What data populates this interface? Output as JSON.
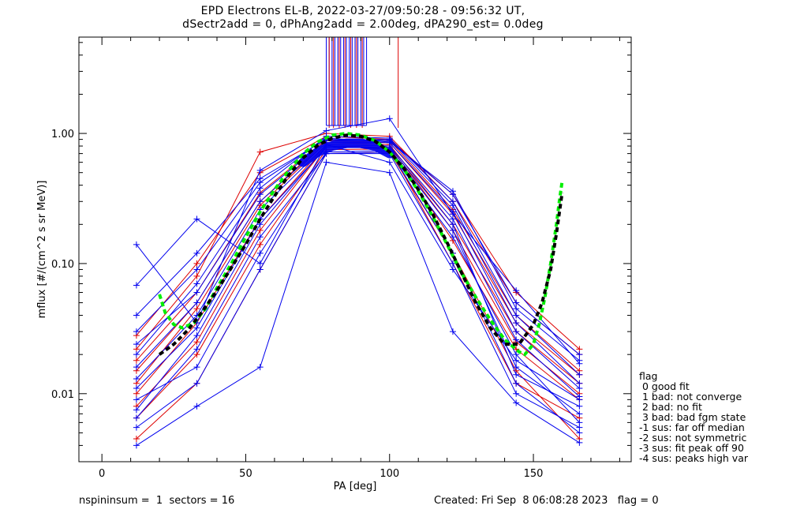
{
  "title_line1": "EPD Electrons EL-B, 2022-03-27/09:50:28 - 09:56:32 UT,",
  "title_line2": "dSectr2add = 0, dPhAng2add = 2.00deg, dPA290_est=    0.0deg",
  "footer": {
    "left": "nspininsum =  1  sectors = 16",
    "right": "Created: Fri Sep  8 06:08:28 2023   flag = 0"
  },
  "legend": {
    "title": "flag",
    "items": [
      " 0 good fit",
      " 1 bad: not converge",
      " 2 bad: no fit",
      " 3 bad: bad fgm state",
      "-1 sus: far off median",
      "-2 sus: not symmetric",
      "-3 sus: fit peak off 90",
      "-4 sus: peaks high var"
    ]
  },
  "colors": {
    "red": "#dd0000",
    "blue": "#0000ee",
    "green": "#00ee00",
    "black": "#000000"
  },
  "chart_data": {
    "type": "line",
    "xlabel": "PA [deg]",
    "ylabel": "mflux [#/(cm^2 s sr MeV)]",
    "xlim": [
      -8,
      184
    ],
    "ylim": [
      0.003,
      5.5
    ],
    "yscale": "log",
    "xticks": [
      0,
      50,
      100,
      150
    ],
    "xtick_labels": [
      "0",
      "50",
      "100",
      "150"
    ],
    "yticks": [
      0.01,
      0.1,
      1.0
    ],
    "ytick_labels": [
      "0.01",
      "0.10",
      "1.00"
    ],
    "sector_pa": [
      12,
      33,
      55,
      78,
      100,
      122,
      144,
      166
    ],
    "series": [
      {
        "color": "blue",
        "x": [
          12,
          33,
          55,
          78,
          100,
          122,
          144,
          166
        ],
        "y": [
          0.0065,
          0.022,
          0.16,
          0.7,
          0.72,
          0.16,
          0.02,
          0.006
        ]
      },
      {
        "color": "blue",
        "x": [
          12,
          33,
          55,
          78,
          100,
          122,
          144,
          166
        ],
        "y": [
          0.011,
          0.032,
          0.22,
          0.78,
          0.78,
          0.2,
          0.014,
          0.008
        ]
      },
      {
        "color": "blue",
        "x": [
          12,
          33,
          55,
          78,
          100,
          122,
          144,
          166
        ],
        "y": [
          0.016,
          0.05,
          0.3,
          0.85,
          0.85,
          0.25,
          0.03,
          0.011
        ]
      },
      {
        "color": "blue",
        "x": [
          12,
          33,
          55,
          78,
          100,
          122,
          144,
          166
        ],
        "y": [
          0.009,
          0.016,
          0.12,
          0.72,
          0.74,
          0.12,
          0.012,
          0.005
        ]
      },
      {
        "color": "blue",
        "x": [
          12,
          33,
          55,
          78,
          100,
          122,
          144,
          166
        ],
        "y": [
          0.02,
          0.07,
          0.38,
          0.95,
          0.92,
          0.3,
          0.04,
          0.014
        ]
      },
      {
        "color": "blue",
        "x": [
          12,
          33,
          55,
          78,
          100,
          122,
          144,
          166
        ],
        "y": [
          0.14,
          0.035,
          0.52,
          1.05,
          1.3,
          0.24,
          0.062,
          0.017
        ]
      },
      {
        "color": "blue",
        "x": [
          12,
          33,
          55,
          78,
          100,
          122,
          144,
          166
        ],
        "y": [
          0.068,
          0.22,
          0.1,
          0.82,
          0.6,
          0.09,
          0.018,
          0.009
        ]
      },
      {
        "color": "blue",
        "x": [
          12,
          33,
          55,
          78,
          100,
          122,
          144,
          166
        ],
        "y": [
          0.004,
          0.008,
          0.016,
          0.6,
          0.5,
          0.03,
          0.0085,
          0.0042
        ]
      },
      {
        "color": "blue",
        "x": [
          12,
          33,
          55,
          78,
          100,
          122,
          144,
          166
        ],
        "y": [
          0.04,
          0.12,
          0.45,
          0.9,
          0.88,
          0.34,
          0.05,
          0.02
        ]
      },
      {
        "color": "blue",
        "x": [
          12,
          33,
          55,
          78,
          100,
          122,
          144,
          166
        ],
        "y": [
          0.0075,
          0.028,
          0.2,
          0.8,
          0.76,
          0.18,
          0.016,
          0.007
        ]
      },
      {
        "color": "blue",
        "x": [
          12,
          33,
          55,
          78,
          100,
          122,
          144,
          166
        ],
        "y": [
          0.013,
          0.04,
          0.26,
          0.82,
          0.8,
          0.22,
          0.026,
          0.0095
        ]
      },
      {
        "color": "blue",
        "x": [
          12,
          33,
          55,
          78,
          100,
          122,
          144,
          166
        ],
        "y": [
          0.0055,
          0.012,
          0.09,
          0.7,
          0.7,
          0.1,
          0.01,
          0.0055
        ]
      },
      {
        "color": "blue",
        "x": [
          12,
          33,
          55,
          78,
          100,
          122,
          144,
          166
        ],
        "y": [
          0.024,
          0.06,
          0.34,
          0.88,
          0.9,
          0.28,
          0.035,
          0.012
        ]
      },
      {
        "color": "blue",
        "x": [
          12,
          33,
          55,
          78,
          100,
          122,
          144,
          166
        ],
        "y": [
          0.03,
          0.09,
          0.42,
          0.92,
          0.86,
          0.36,
          0.045,
          0.018
        ]
      },
      {
        "color": "red",
        "x": [
          12,
          33,
          55,
          78,
          100,
          122,
          144,
          166
        ],
        "y": [
          0.012,
          0.045,
          0.28,
          0.85,
          0.82,
          0.2,
          0.03,
          0.012
        ]
      },
      {
        "color": "red",
        "x": [
          12,
          33,
          55,
          78,
          100,
          122,
          144,
          166
        ],
        "y": [
          0.018,
          0.06,
          0.35,
          0.9,
          0.88,
          0.26,
          0.04,
          0.015
        ]
      },
      {
        "color": "red",
        "x": [
          12,
          33,
          55,
          78,
          100,
          122,
          144,
          166
        ],
        "y": [
          0.008,
          0.025,
          0.18,
          0.8,
          0.78,
          0.15,
          0.022,
          0.009
        ]
      },
      {
        "color": "red",
        "x": [
          12,
          33,
          55,
          78,
          100,
          122,
          144,
          166
        ],
        "y": [
          0.022,
          0.08,
          0.72,
          1.0,
          0.95,
          0.3,
          0.05,
          0.02
        ]
      },
      {
        "color": "red",
        "x": [
          12,
          33,
          55,
          78,
          100,
          122,
          144,
          166
        ],
        "y": [
          0.0045,
          0.012,
          0.09,
          0.7,
          0.72,
          0.12,
          0.015,
          0.0045
        ]
      },
      {
        "color": "red",
        "x": [
          12,
          33,
          55,
          78,
          100,
          122,
          144,
          166
        ],
        "y": [
          0.028,
          0.1,
          0.5,
          0.95,
          0.9,
          0.34,
          0.06,
          0.022
        ]
      },
      {
        "color": "red",
        "x": [
          12,
          33,
          55,
          78,
          100,
          122,
          144,
          166
        ],
        "y": [
          0.01,
          0.035,
          0.22,
          0.82,
          0.8,
          0.18,
          0.025,
          0.01
        ]
      },
      {
        "color": "red",
        "x": [
          12,
          33,
          55,
          78,
          100,
          122,
          144,
          166
        ],
        "y": [
          0.0065,
          0.02,
          0.14,
          0.75,
          0.76,
          0.1,
          0.012,
          0.0065
        ]
      },
      {
        "color": "red",
        "x": [
          12,
          33,
          55,
          78,
          100,
          122,
          144,
          166
        ],
        "y": [
          0.015,
          0.05,
          0.3,
          0.88,
          0.85,
          0.24,
          0.035,
          0.014
        ]
      }
    ],
    "spikes": {
      "note": "saturated near-90 deg values drawn as vertical lines running off the top axis",
      "blue_x": [
        78,
        79,
        80,
        81,
        82,
        83,
        84,
        85,
        86,
        87,
        88,
        89,
        90,
        91,
        92
      ],
      "red_x": [
        79,
        80.5,
        82.5,
        84.5,
        86.5,
        88.5,
        90.5,
        103
      ],
      "base_y": 1.15
    },
    "fits": [
      {
        "name": "green-fit",
        "color": "green",
        "x": [
          20,
          22,
          25,
          28,
          32,
          36,
          40,
          45,
          50,
          55,
          60,
          65,
          70,
          75,
          80,
          85,
          90,
          95,
          100,
          105,
          110,
          115,
          120,
          125,
          130,
          135,
          140,
          145,
          147,
          150,
          152,
          154,
          156,
          158,
          159,
          160
        ],
        "y": [
          0.058,
          0.042,
          0.034,
          0.032,
          0.035,
          0.045,
          0.065,
          0.1,
          0.16,
          0.25,
          0.37,
          0.52,
          0.7,
          0.86,
          0.97,
          1.0,
          0.97,
          0.88,
          0.72,
          0.53,
          0.36,
          0.23,
          0.14,
          0.085,
          0.055,
          0.037,
          0.026,
          0.021,
          0.02,
          0.024,
          0.034,
          0.055,
          0.1,
          0.2,
          0.3,
          0.43
        ]
      },
      {
        "name": "black-fit",
        "color": "black",
        "x": [
          20,
          25,
          30,
          35,
          40,
          45,
          50,
          55,
          60,
          65,
          70,
          75,
          80,
          85,
          90,
          95,
          100,
          105,
          110,
          115,
          120,
          125,
          130,
          135,
          140,
          145,
          150,
          153,
          156,
          158,
          160
        ],
        "y": [
          0.02,
          0.024,
          0.031,
          0.043,
          0.062,
          0.093,
          0.14,
          0.22,
          0.33,
          0.48,
          0.65,
          0.81,
          0.92,
          0.97,
          0.95,
          0.87,
          0.72,
          0.54,
          0.37,
          0.24,
          0.145,
          0.085,
          0.05,
          0.032,
          0.024,
          0.024,
          0.034,
          0.05,
          0.09,
          0.17,
          0.35
        ]
      }
    ]
  }
}
